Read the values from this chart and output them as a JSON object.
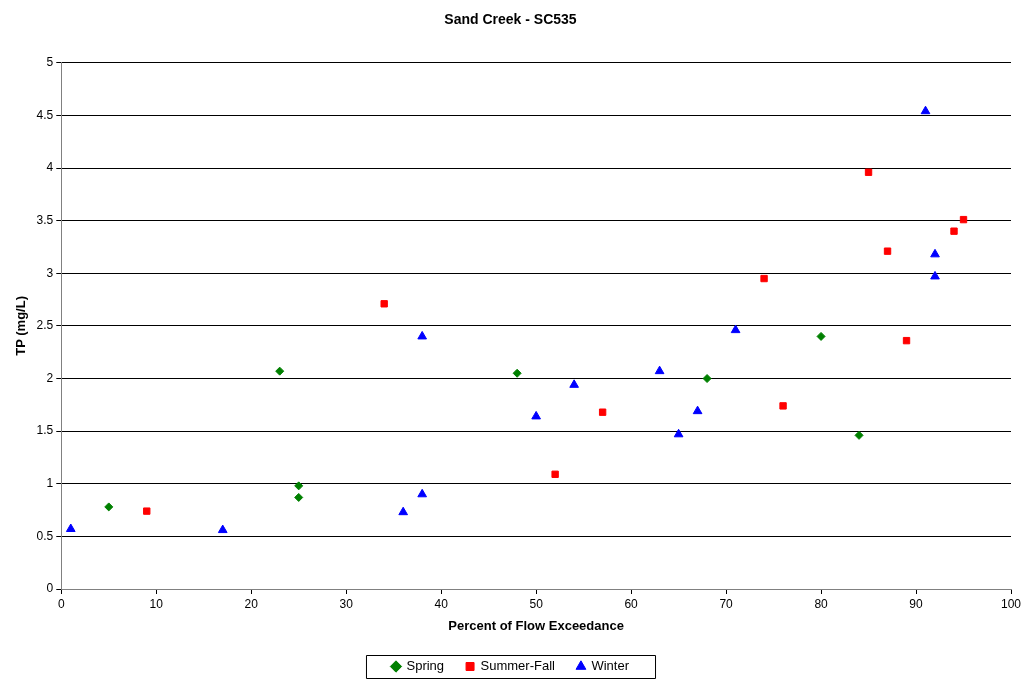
{
  "chart_data": {
    "type": "scatter",
    "title": "Sand Creek - SC535",
    "xlabel": "Percent of Flow Exceedance",
    "ylabel": "TP (mg/L)",
    "xlim": [
      0,
      100
    ],
    "xticks": [
      0,
      10,
      20,
      30,
      40,
      50,
      60,
      70,
      80,
      90,
      100
    ],
    "ylim": [
      0,
      5
    ],
    "yticks": [
      0,
      0.5,
      1,
      1.5,
      2,
      2.5,
      3,
      3.5,
      4,
      4.5,
      5
    ],
    "grid": "y",
    "legend": "bottom",
    "series": [
      {
        "name": "Spring",
        "color": "#008000",
        "marker": "diamond",
        "x": [
          5,
          23,
          25,
          25,
          48,
          68,
          80,
          84
        ],
        "values": [
          0.78,
          2.07,
          0.98,
          0.87,
          2.05,
          2.0,
          2.4,
          1.46
        ]
      },
      {
        "name": "Summer-Fall",
        "color": "#ff0000",
        "marker": "square",
        "x": [
          9,
          34,
          52,
          57,
          74,
          76,
          85,
          87,
          89,
          94,
          95
        ],
        "values": [
          0.74,
          2.71,
          1.09,
          1.68,
          2.95,
          1.74,
          3.96,
          3.21,
          2.36,
          3.4,
          3.51
        ]
      },
      {
        "name": "Winter",
        "color": "#0000ff",
        "marker": "triangle",
        "x": [
          1,
          17,
          36,
          38,
          38,
          50,
          54,
          63,
          65,
          67,
          71,
          91,
          92,
          92
        ],
        "values": [
          0.57,
          0.56,
          0.73,
          0.9,
          2.4,
          1.64,
          1.94,
          2.07,
          1.47,
          1.69,
          2.46,
          4.54,
          3.18,
          2.97
        ]
      }
    ]
  }
}
